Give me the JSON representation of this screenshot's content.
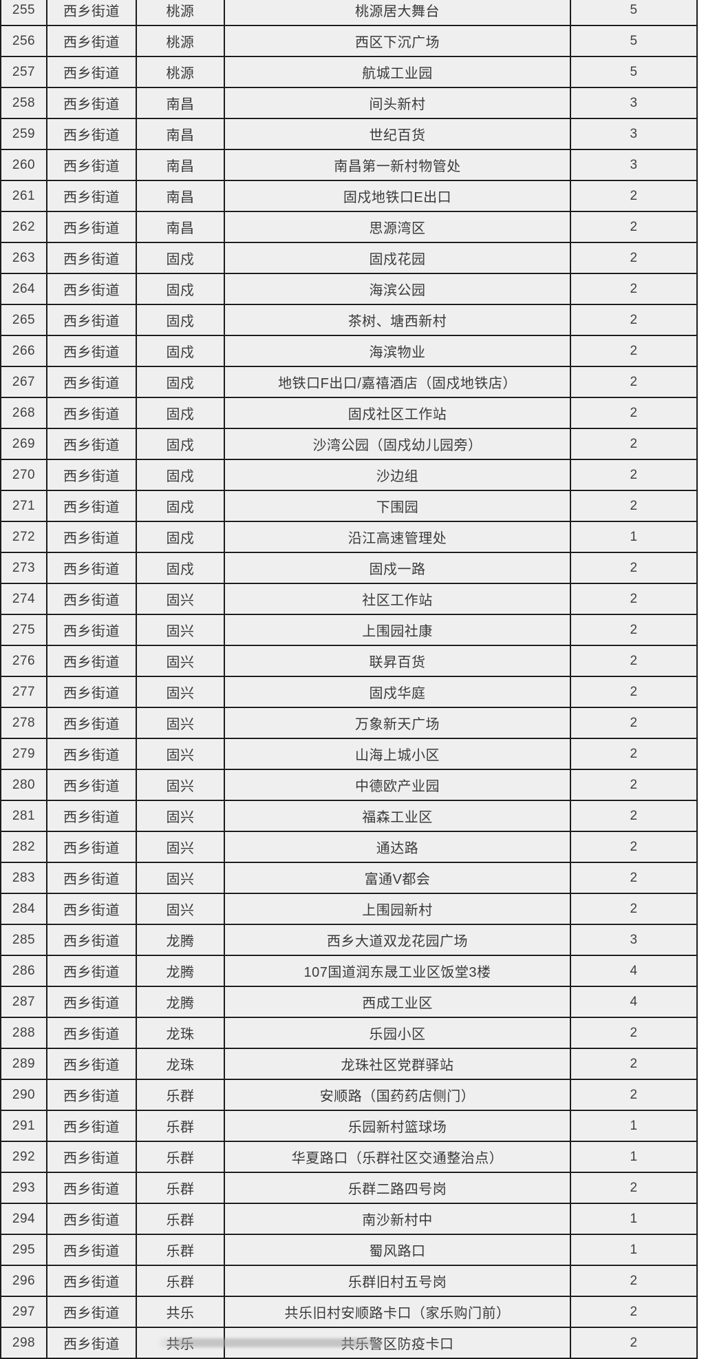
{
  "colors": {
    "cell_background": "#efefef",
    "grid_line": "#1d1d1d",
    "text": "#3a3a3a",
    "page_background": "#ffffff"
  },
  "table": {
    "rows": [
      {
        "no": "255",
        "street": "西乡街道",
        "community": "桃源",
        "location": "桃源居大舞台",
        "count": "5"
      },
      {
        "no": "256",
        "street": "西乡街道",
        "community": "桃源",
        "location": "西区下沉广场",
        "count": "5"
      },
      {
        "no": "257",
        "street": "西乡街道",
        "community": "桃源",
        "location": "航城工业园",
        "count": "5"
      },
      {
        "no": "258",
        "street": "西乡街道",
        "community": "南昌",
        "location": "间头新村",
        "count": "3"
      },
      {
        "no": "259",
        "street": "西乡街道",
        "community": "南昌",
        "location": "世纪百货",
        "count": "3"
      },
      {
        "no": "260",
        "street": "西乡街道",
        "community": "南昌",
        "location": "南昌第一新村物管处",
        "count": "3"
      },
      {
        "no": "261",
        "street": "西乡街道",
        "community": "南昌",
        "location": "固戍地铁口E出口",
        "count": "2"
      },
      {
        "no": "262",
        "street": "西乡街道",
        "community": "南昌",
        "location": "思源湾区",
        "count": "2"
      },
      {
        "no": "263",
        "street": "西乡街道",
        "community": "固戍",
        "location": "固戍花园",
        "count": "2"
      },
      {
        "no": "264",
        "street": "西乡街道",
        "community": "固戍",
        "location": "海滨公园",
        "count": "2"
      },
      {
        "no": "265",
        "street": "西乡街道",
        "community": "固戍",
        "location": "茶树、塘西新村",
        "count": "2"
      },
      {
        "no": "266",
        "street": "西乡街道",
        "community": "固戍",
        "location": "海滨物业",
        "count": "2"
      },
      {
        "no": "267",
        "street": "西乡街道",
        "community": "固戍",
        "location": "地铁口F出口/嘉禧酒店（固戍地铁店）",
        "count": "2"
      },
      {
        "no": "268",
        "street": "西乡街道",
        "community": "固戍",
        "location": "固戍社区工作站",
        "count": "2"
      },
      {
        "no": "269",
        "street": "西乡街道",
        "community": "固戍",
        "location": "沙湾公园（固戍幼儿园旁）",
        "count": "2"
      },
      {
        "no": "270",
        "street": "西乡街道",
        "community": "固戍",
        "location": "沙边组",
        "count": "2"
      },
      {
        "no": "271",
        "street": "西乡街道",
        "community": "固戍",
        "location": "下围园",
        "count": "2"
      },
      {
        "no": "272",
        "street": "西乡街道",
        "community": "固戍",
        "location": "沿江高速管理处",
        "count": "1"
      },
      {
        "no": "273",
        "street": "西乡街道",
        "community": "固戍",
        "location": "固戍一路",
        "count": "2"
      },
      {
        "no": "274",
        "street": "西乡街道",
        "community": "固兴",
        "location": "社区工作站",
        "count": "2"
      },
      {
        "no": "275",
        "street": "西乡街道",
        "community": "固兴",
        "location": "上围园社康",
        "count": "2"
      },
      {
        "no": "276",
        "street": "西乡街道",
        "community": "固兴",
        "location": "联昇百货",
        "count": "2"
      },
      {
        "no": "277",
        "street": "西乡街道",
        "community": "固兴",
        "location": "固戍华庭",
        "count": "2"
      },
      {
        "no": "278",
        "street": "西乡街道",
        "community": "固兴",
        "location": "万象新天广场",
        "count": "2"
      },
      {
        "no": "279",
        "street": "西乡街道",
        "community": "固兴",
        "location": "山海上城小区",
        "count": "2"
      },
      {
        "no": "280",
        "street": "西乡街道",
        "community": "固兴",
        "location": "中德欧产业园",
        "count": "2"
      },
      {
        "no": "281",
        "street": "西乡街道",
        "community": "固兴",
        "location": "福森工业区",
        "count": "2"
      },
      {
        "no": "282",
        "street": "西乡街道",
        "community": "固兴",
        "location": "通达路",
        "count": "2"
      },
      {
        "no": "283",
        "street": "西乡街道",
        "community": "固兴",
        "location": "富通V都会",
        "count": "2"
      },
      {
        "no": "284",
        "street": "西乡街道",
        "community": "固兴",
        "location": "上围园新村",
        "count": "2"
      },
      {
        "no": "285",
        "street": "西乡街道",
        "community": "龙腾",
        "location": "西乡大道双龙花园广场",
        "count": "3"
      },
      {
        "no": "286",
        "street": "西乡街道",
        "community": "龙腾",
        "location": "107国道润东晟工业区饭堂3楼",
        "count": "4"
      },
      {
        "no": "287",
        "street": "西乡街道",
        "community": "龙腾",
        "location": "西成工业区",
        "count": "4"
      },
      {
        "no": "288",
        "street": "西乡街道",
        "community": "龙珠",
        "location": "乐园小区",
        "count": "2"
      },
      {
        "no": "289",
        "street": "西乡街道",
        "community": "龙珠",
        "location": "龙珠社区党群驿站",
        "count": "2"
      },
      {
        "no": "290",
        "street": "西乡街道",
        "community": "乐群",
        "location": "安顺路（国药药店侧门）",
        "count": "2"
      },
      {
        "no": "291",
        "street": "西乡街道",
        "community": "乐群",
        "location": "乐园新村篮球场",
        "count": "1"
      },
      {
        "no": "292",
        "street": "西乡街道",
        "community": "乐群",
        "location": "华夏路口（乐群社区交通整治点）",
        "count": "1"
      },
      {
        "no": "293",
        "street": "西乡街道",
        "community": "乐群",
        "location": "乐群二路四号岗",
        "count": "2"
      },
      {
        "no": "294",
        "street": "西乡街道",
        "community": "乐群",
        "location": "南沙新村中",
        "count": "1"
      },
      {
        "no": "295",
        "street": "西乡街道",
        "community": "乐群",
        "location": "蜀风路口",
        "count": "1"
      },
      {
        "no": "296",
        "street": "西乡街道",
        "community": "乐群",
        "location": "乐群旧村五号岗",
        "count": "2"
      },
      {
        "no": "297",
        "street": "西乡街道",
        "community": "共乐",
        "location": "共乐旧村安顺路卡口（家乐购门前）",
        "count": "2"
      },
      {
        "no": "298",
        "street": "西乡街道",
        "community": "共乐",
        "location": "共乐警区防疫卡口",
        "count": "2"
      }
    ]
  }
}
